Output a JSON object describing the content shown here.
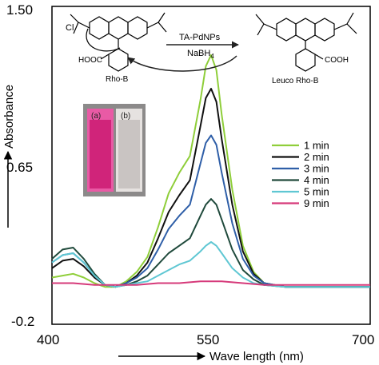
{
  "chart_data": {
    "type": "line",
    "xlabel": "Wave length (nm)",
    "ylabel": "Absorbance",
    "xlim": [
      400,
      700
    ],
    "ylim": [
      -0.2,
      1.5
    ],
    "x_ticks": [
      "400",
      "550",
      "700"
    ],
    "y_ticks": [
      "1.50",
      "0.65",
      "-0.2"
    ],
    "legend_position": "right",
    "series": [
      {
        "name": "1 min",
        "color": "#8fce3a",
        "x": [
          400,
          410,
          420,
          430,
          440,
          450,
          460,
          470,
          480,
          490,
          500,
          510,
          520,
          530,
          540,
          545,
          550,
          555,
          560,
          570,
          580,
          590,
          600,
          620,
          650,
          700
        ],
        "y": [
          0.05,
          0.06,
          0.07,
          0.05,
          0.02,
          0.0,
          0.0,
          0.03,
          0.08,
          0.16,
          0.32,
          0.5,
          0.61,
          0.7,
          1.0,
          1.18,
          1.24,
          1.16,
          0.92,
          0.52,
          0.22,
          0.08,
          0.02,
          0.0,
          0.0,
          0.0
        ]
      },
      {
        "name": "2 min",
        "color": "#111111",
        "x": [
          400,
          410,
          420,
          430,
          440,
          450,
          460,
          470,
          480,
          490,
          500,
          510,
          520,
          530,
          540,
          545,
          550,
          555,
          560,
          570,
          580,
          590,
          600,
          620,
          650,
          700
        ],
        "y": [
          0.1,
          0.14,
          0.15,
          0.11,
          0.05,
          0.01,
          0.0,
          0.02,
          0.06,
          0.13,
          0.26,
          0.4,
          0.49,
          0.57,
          0.86,
          1.01,
          1.06,
          0.99,
          0.79,
          0.44,
          0.19,
          0.07,
          0.02,
          0.0,
          0.0,
          0.0
        ]
      },
      {
        "name": "3 min",
        "color": "#2f5fa8",
        "x": [
          400,
          410,
          420,
          430,
          440,
          450,
          460,
          470,
          480,
          490,
          500,
          510,
          520,
          530,
          540,
          545,
          550,
          555,
          560,
          570,
          580,
          590,
          600,
          620,
          650,
          700
        ],
        "y": [
          0.13,
          0.17,
          0.18,
          0.13,
          0.06,
          0.01,
          0.0,
          0.02,
          0.05,
          0.1,
          0.2,
          0.31,
          0.38,
          0.44,
          0.66,
          0.77,
          0.81,
          0.76,
          0.61,
          0.34,
          0.15,
          0.06,
          0.02,
          0.0,
          0.0,
          0.0
        ]
      },
      {
        "name": "4 min",
        "color": "#204a3c",
        "x": [
          400,
          410,
          420,
          430,
          440,
          450,
          460,
          470,
          480,
          490,
          500,
          510,
          520,
          530,
          540,
          545,
          550,
          555,
          560,
          570,
          580,
          590,
          600,
          620,
          650,
          700
        ],
        "y": [
          0.15,
          0.2,
          0.21,
          0.15,
          0.07,
          0.01,
          0.0,
          0.01,
          0.03,
          0.06,
          0.12,
          0.18,
          0.22,
          0.26,
          0.38,
          0.44,
          0.47,
          0.44,
          0.36,
          0.2,
          0.09,
          0.04,
          0.01,
          0.0,
          0.0,
          0.0
        ]
      },
      {
        "name": "5 min",
        "color": "#5fc7d3",
        "x": [
          400,
          410,
          420,
          430,
          440,
          450,
          460,
          470,
          480,
          490,
          500,
          510,
          520,
          530,
          540,
          545,
          550,
          555,
          560,
          570,
          580,
          590,
          600,
          620,
          650,
          700
        ],
        "y": [
          0.13,
          0.17,
          0.18,
          0.13,
          0.06,
          0.01,
          0.0,
          0.01,
          0.02,
          0.03,
          0.06,
          0.09,
          0.12,
          0.14,
          0.19,
          0.22,
          0.24,
          0.22,
          0.18,
          0.1,
          0.05,
          0.02,
          0.01,
          0.0,
          0.0,
          0.0
        ]
      },
      {
        "name": "9 min",
        "color": "#d63a7a",
        "x": [
          400,
          420,
          440,
          460,
          480,
          500,
          520,
          540,
          550,
          560,
          580,
          600,
          650,
          700
        ],
        "y": [
          0.02,
          0.02,
          0.01,
          0.01,
          0.01,
          0.02,
          0.02,
          0.03,
          0.03,
          0.03,
          0.02,
          0.01,
          0.01,
          0.01
        ]
      }
    ]
  },
  "scheme": {
    "reactant": "Rho-B",
    "product": "Leuco Rho-B",
    "catalyst": "TA-PdNPs",
    "reductant": "NaBH",
    "reductant_sub": "4",
    "cl": "Cl",
    "cooh_left": "HOOC",
    "cooh_right": "COOH",
    "cuvette_a": "(a)",
    "cuvette_b": "(b)"
  },
  "colors": {
    "cuvette_a": "#d0247a",
    "cuvette_b": "#c9c4c2"
  }
}
